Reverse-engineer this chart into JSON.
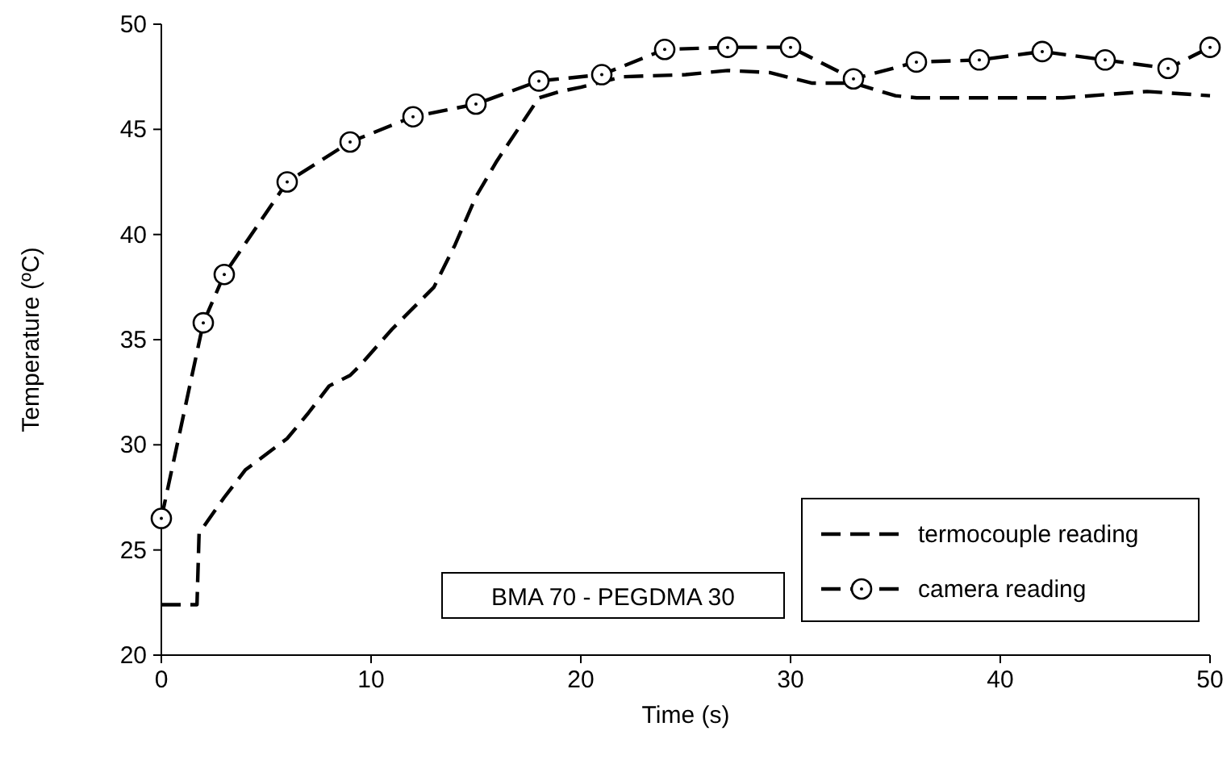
{
  "chart_data": {
    "type": "line",
    "xlabel": "Time (s)",
    "ylabel": "Temperature (ºC)",
    "xlim": [
      0,
      50
    ],
    "xticks": [
      0,
      10,
      20,
      30,
      40,
      50
    ],
    "ylim": [
      20,
      50
    ],
    "yticks": [
      20,
      25,
      30,
      35,
      40,
      45,
      50
    ],
    "grid": false,
    "legend": "bottom right",
    "annotations": [
      "BMA 70 - PEGDMA 30"
    ],
    "series": [
      {
        "name": "termocouple reading",
        "color": "#000000",
        "line_style": "dashed",
        "marker": "none",
        "x": [
          0,
          1.7,
          1.8,
          3,
          4,
          6,
          7,
          8,
          9,
          9.5,
          11,
          13,
          14,
          15,
          16,
          17,
          18,
          19,
          20,
          22,
          25,
          27,
          29,
          31,
          33,
          35,
          36,
          40,
          43,
          47,
          50
        ],
        "values": [
          22.4,
          22.4,
          25.8,
          27.5,
          28.8,
          30.3,
          31.5,
          32.8,
          33.3,
          33.8,
          35.5,
          37.5,
          39.5,
          41.8,
          43.5,
          45,
          46.5,
          46.8,
          47,
          47.5,
          47.6,
          47.8,
          47.7,
          47.2,
          47.2,
          46.6,
          46.5,
          46.5,
          46.5,
          46.8,
          46.6
        ]
      },
      {
        "name": "camera reading",
        "color": "#000000",
        "line_style": "dashed",
        "marker": "circle",
        "x": [
          0,
          2,
          3,
          6,
          9,
          12,
          15,
          18,
          21,
          24,
          27,
          30,
          33,
          36,
          39,
          42,
          45,
          48,
          50
        ],
        "values": [
          26.5,
          35.8,
          38.1,
          42.5,
          44.4,
          45.6,
          46.2,
          47.3,
          47.6,
          48.8,
          48.9,
          48.9,
          47.4,
          48.2,
          48.3,
          48.7,
          48.3,
          47.9,
          48.9
        ]
      }
    ]
  }
}
